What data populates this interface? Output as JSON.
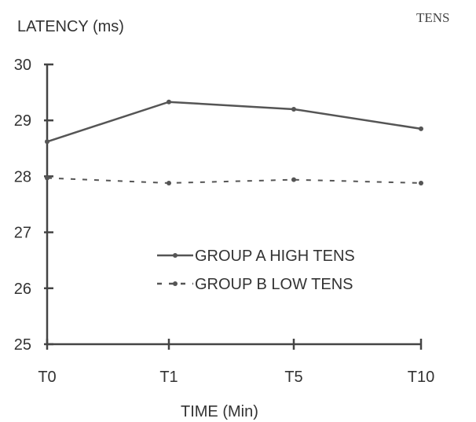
{
  "corner_label": "TENS",
  "chart_data": {
    "type": "line",
    "title": "",
    "ylabel": "LATENCY (ms)",
    "xlabel": "TIME (Min)",
    "categories": [
      "T0",
      "T1",
      "T5",
      "T10"
    ],
    "yticks": [
      "25",
      "26",
      "27",
      "28",
      "29",
      "30"
    ],
    "ylim": [
      25,
      30
    ],
    "grid": false,
    "legend_position": "center",
    "series": [
      {
        "name": "GROUP A  HIGH TENS",
        "style": "solid",
        "color": "#555555",
        "values": [
          28.62,
          29.33,
          29.2,
          28.85
        ]
      },
      {
        "name": "GROUP B LOW TENS",
        "style": "dashed",
        "color": "#555555",
        "values": [
          27.97,
          27.88,
          27.94,
          27.88
        ]
      }
    ]
  }
}
